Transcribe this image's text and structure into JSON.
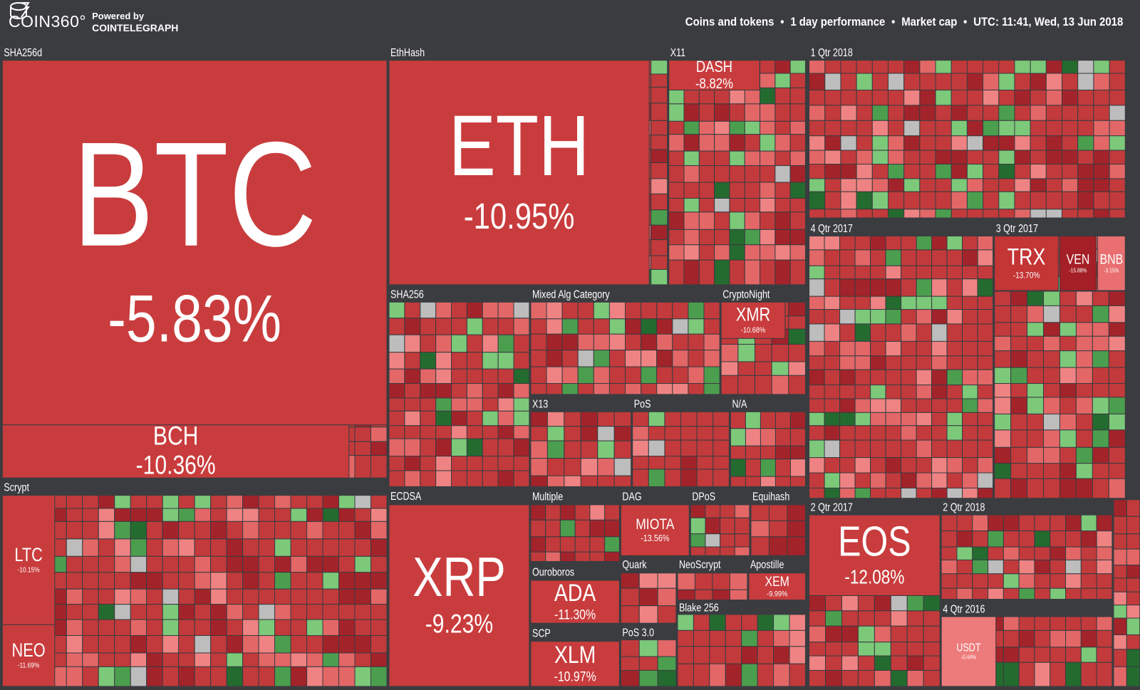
{
  "header": {
    "brand": "COIN360°",
    "powered_by": "Powered by",
    "partner": "COINTELEGRAPH",
    "filters": [
      "Coins and tokens",
      "1 day performance",
      "Market cap",
      "UTC: 11:41, Wed, 13 Jun 2018"
    ]
  },
  "groups": [
    {
      "label": "SHA256d",
      "coins": [
        {
          "name": "BTC",
          "change": "-5.83%"
        },
        {
          "name": "BCH",
          "change": "-10.36%"
        }
      ]
    },
    {
      "label": "EthHash",
      "coins": [
        {
          "name": "ETH",
          "change": "-10.95%"
        }
      ]
    },
    {
      "label": "X11",
      "coins": [
        {
          "name": "DASH",
          "change": "-8.82%"
        }
      ]
    },
    {
      "label": "1 Qtr 2018",
      "coins": []
    },
    {
      "label": "4 Qtr 2017",
      "coins": []
    },
    {
      "label": "3 Qtr 2017",
      "coins": [
        {
          "name": "TRX",
          "change": "-13.70%"
        },
        {
          "name": "VEN",
          "change": "-15.88%"
        },
        {
          "name": "BNB",
          "change": "-3.15%"
        }
      ]
    },
    {
      "label": "SHA256",
      "coins": []
    },
    {
      "label": "Mixed Alg Category",
      "coins": []
    },
    {
      "label": "CryptoNight",
      "coins": [
        {
          "name": "XMR",
          "change": "-10.68%"
        }
      ]
    },
    {
      "label": "X13",
      "coins": []
    },
    {
      "label": "PoS",
      "coins": []
    },
    {
      "label": "N/A",
      "coins": []
    },
    {
      "label": "Scrypt",
      "coins": [
        {
          "name": "LTC",
          "change": "-10.15%"
        },
        {
          "name": "NEO",
          "change": "-11.69%"
        }
      ]
    },
    {
      "label": "ECDSA",
      "coins": [
        {
          "name": "XRP",
          "change": "-9.23%"
        }
      ]
    },
    {
      "label": "Multiple",
      "coins": []
    },
    {
      "label": "Ouroboros",
      "coins": [
        {
          "name": "ADA",
          "change": "-11.30%"
        }
      ]
    },
    {
      "label": "SCP",
      "coins": [
        {
          "name": "XLM",
          "change": "-10.97%"
        }
      ]
    },
    {
      "label": "DAG",
      "coins": [
        {
          "name": "MIOTA",
          "change": "-13.56%"
        }
      ]
    },
    {
      "label": "DPoS",
      "coins": []
    },
    {
      "label": "Equihash",
      "coins": []
    },
    {
      "label": "Quark",
      "coins": []
    },
    {
      "label": "NeoScrypt",
      "coins": []
    },
    {
      "label": "Apostille",
      "coins": [
        {
          "name": "XEM",
          "change": "-9.99%"
        }
      ]
    },
    {
      "label": "Blake 256",
      "coins": []
    },
    {
      "label": "PoS 3.0",
      "coins": []
    },
    {
      "label": "2 Qtr 2017",
      "coins": [
        {
          "name": "EOS",
          "change": "-12.08%"
        }
      ]
    },
    {
      "label": "2 Qtr 2018",
      "coins": []
    },
    {
      "label": "4 Qtr 2016",
      "coins": [
        {
          "name": "USDT",
          "change": "-0.44%"
        }
      ]
    }
  ]
}
